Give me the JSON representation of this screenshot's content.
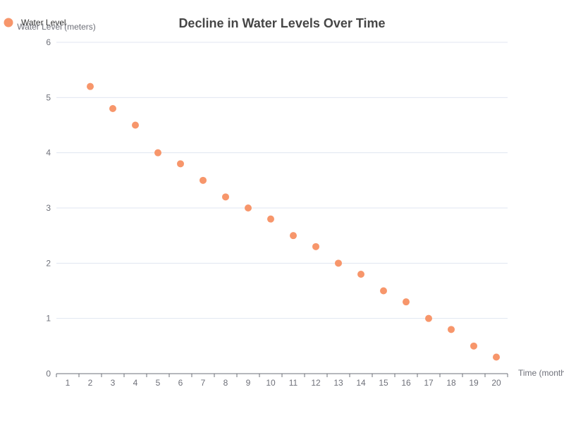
{
  "chart_data": {
    "type": "scatter",
    "title": "Decline in Water Levels Over Time",
    "xlabel": "Time (months)",
    "ylabel": "Water Level (meters)",
    "xlim": [
      1,
      20
    ],
    "ylim": [
      0,
      6
    ],
    "x_ticks": [
      1,
      2,
      3,
      4,
      5,
      6,
      7,
      8,
      9,
      10,
      11,
      12,
      13,
      14,
      15,
      16,
      17,
      18,
      19,
      20
    ],
    "y_ticks": [
      0,
      1,
      2,
      3,
      4,
      5,
      6
    ],
    "grid": true,
    "legend_position": "top-left",
    "series": [
      {
        "name": "Water Level",
        "color": "#f7966b",
        "x": [
          2,
          3,
          4,
          5,
          6,
          7,
          8,
          9,
          10,
          11,
          12,
          13,
          14,
          15,
          16,
          17,
          18,
          19,
          20
        ],
        "values": [
          5.2,
          4.8,
          4.5,
          4.0,
          3.8,
          3.5,
          3.2,
          3.0,
          2.8,
          2.5,
          2.3,
          2.0,
          1.8,
          1.5,
          1.3,
          1.0,
          0.8,
          0.5,
          0.3
        ]
      }
    ]
  }
}
